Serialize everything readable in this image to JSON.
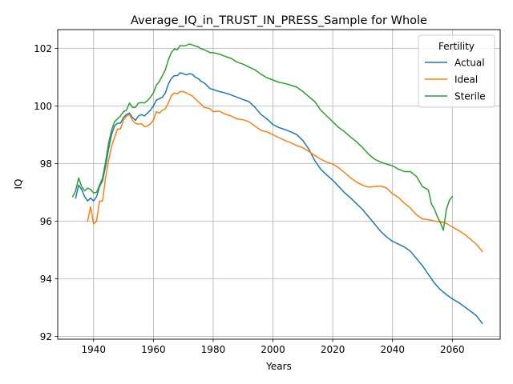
{
  "chart_data": {
    "type": "line",
    "title": "Average_IQ_in_TRUST_IN_PRESS_Sample for Whole",
    "xlabel": "Years",
    "ylabel": "IQ",
    "xlim": [
      1928,
      2076
    ],
    "ylim": [
      91.9,
      102.65
    ],
    "xticks": [
      1940,
      1960,
      1980,
      2000,
      2020,
      2040,
      2060
    ],
    "yticks": [
      92,
      94,
      96,
      98,
      100,
      102
    ],
    "grid": true,
    "legend": {
      "title": "Fertility",
      "placement": "top-right"
    },
    "series": [
      {
        "name": "Actual",
        "color": "#1f77b4",
        "points": [
          [
            1934,
            96.8
          ],
          [
            1935,
            97.25
          ],
          [
            1936,
            97.1
          ],
          [
            1937,
            96.85
          ],
          [
            1938,
            96.7
          ],
          [
            1939,
            96.8
          ],
          [
            1940,
            96.7
          ],
          [
            1941,
            96.85
          ],
          [
            1942,
            97.2
          ],
          [
            1943,
            97.4
          ],
          [
            1944,
            97.9
          ],
          [
            1945,
            98.5
          ],
          [
            1946,
            99.0
          ],
          [
            1947,
            99.3
          ],
          [
            1948,
            99.4
          ],
          [
            1949,
            99.4
          ],
          [
            1950,
            99.6
          ],
          [
            1951,
            99.7
          ],
          [
            1952,
            99.75
          ],
          [
            1953,
            99.6
          ],
          [
            1954,
            99.5
          ],
          [
            1955,
            99.65
          ],
          [
            1956,
            99.7
          ],
          [
            1957,
            99.65
          ],
          [
            1958,
            99.75
          ],
          [
            1959,
            99.85
          ],
          [
            1960,
            100.0
          ],
          [
            1961,
            100.2
          ],
          [
            1962,
            100.25
          ],
          [
            1963,
            100.3
          ],
          [
            1964,
            100.45
          ],
          [
            1965,
            100.75
          ],
          [
            1966,
            100.95
          ],
          [
            1967,
            101.05
          ],
          [
            1968,
            101.05
          ],
          [
            1969,
            101.15
          ],
          [
            1970,
            101.12
          ],
          [
            1971,
            101.08
          ],
          [
            1972,
            101.12
          ],
          [
            1973,
            101.1
          ],
          [
            1974,
            101.0
          ],
          [
            1975,
            100.95
          ],
          [
            1976,
            100.85
          ],
          [
            1977,
            100.8
          ],
          [
            1978,
            100.7
          ],
          [
            1979,
            100.6
          ],
          [
            1980,
            100.57
          ],
          [
            1982,
            100.5
          ],
          [
            1984,
            100.45
          ],
          [
            1986,
            100.38
          ],
          [
            1988,
            100.3
          ],
          [
            1990,
            100.22
          ],
          [
            1992,
            100.15
          ],
          [
            1994,
            99.95
          ],
          [
            1996,
            99.7
          ],
          [
            1998,
            99.55
          ],
          [
            2000,
            99.35
          ],
          [
            2002,
            99.25
          ],
          [
            2004,
            99.18
          ],
          [
            2006,
            99.1
          ],
          [
            2008,
            99.0
          ],
          [
            2010,
            98.8
          ],
          [
            2012,
            98.5
          ],
          [
            2014,
            98.1
          ],
          [
            2016,
            97.8
          ],
          [
            2018,
            97.6
          ],
          [
            2020,
            97.42
          ],
          [
            2022,
            97.2
          ],
          [
            2024,
            96.98
          ],
          [
            2026,
            96.8
          ],
          [
            2028,
            96.6
          ],
          [
            2030,
            96.4
          ],
          [
            2032,
            96.15
          ],
          [
            2034,
            95.9
          ],
          [
            2036,
            95.65
          ],
          [
            2038,
            95.45
          ],
          [
            2040,
            95.3
          ],
          [
            2042,
            95.2
          ],
          [
            2044,
            95.1
          ],
          [
            2046,
            94.95
          ],
          [
            2048,
            94.7
          ],
          [
            2050,
            94.45
          ],
          [
            2052,
            94.15
          ],
          [
            2054,
            93.85
          ],
          [
            2056,
            93.62
          ],
          [
            2058,
            93.45
          ],
          [
            2060,
            93.3
          ],
          [
            2062,
            93.18
          ],
          [
            2064,
            93.03
          ],
          [
            2066,
            92.88
          ],
          [
            2068,
            92.72
          ],
          [
            2070,
            92.45
          ]
        ]
      },
      {
        "name": "Ideal",
        "color": "#ff7f0e",
        "points": [
          [
            1938,
            96.0
          ],
          [
            1939,
            96.5
          ],
          [
            1940,
            95.9
          ],
          [
            1941,
            96.0
          ],
          [
            1942,
            96.7
          ],
          [
            1943,
            96.7
          ],
          [
            1944,
            97.5
          ],
          [
            1945,
            98.1
          ],
          [
            1946,
            98.6
          ],
          [
            1947,
            98.9
          ],
          [
            1948,
            99.2
          ],
          [
            1949,
            99.2
          ],
          [
            1950,
            99.5
          ],
          [
            1951,
            99.65
          ],
          [
            1952,
            99.7
          ],
          [
            1953,
            99.5
          ],
          [
            1954,
            99.4
          ],
          [
            1955,
            99.37
          ],
          [
            1956,
            99.38
          ],
          [
            1957,
            99.28
          ],
          [
            1958,
            99.3
          ],
          [
            1959,
            99.38
          ],
          [
            1960,
            99.5
          ],
          [
            1961,
            99.8
          ],
          [
            1962,
            99.75
          ],
          [
            1963,
            99.85
          ],
          [
            1964,
            99.9
          ],
          [
            1965,
            100.1
          ],
          [
            1966,
            100.35
          ],
          [
            1967,
            100.45
          ],
          [
            1968,
            100.42
          ],
          [
            1969,
            100.5
          ],
          [
            1970,
            100.5
          ],
          [
            1971,
            100.45
          ],
          [
            1972,
            100.4
          ],
          [
            1973,
            100.35
          ],
          [
            1974,
            100.25
          ],
          [
            1975,
            100.15
          ],
          [
            1976,
            100.05
          ],
          [
            1977,
            99.95
          ],
          [
            1978,
            99.93
          ],
          [
            1979,
            99.9
          ],
          [
            1980,
            99.8
          ],
          [
            1982,
            99.82
          ],
          [
            1984,
            99.72
          ],
          [
            1986,
            99.65
          ],
          [
            1988,
            99.55
          ],
          [
            1990,
            99.52
          ],
          [
            1992,
            99.45
          ],
          [
            1994,
            99.3
          ],
          [
            1996,
            99.15
          ],
          [
            1998,
            99.1
          ],
          [
            2000,
            99.0
          ],
          [
            2002,
            98.9
          ],
          [
            2004,
            98.8
          ],
          [
            2006,
            98.72
          ],
          [
            2008,
            98.62
          ],
          [
            2010,
            98.55
          ],
          [
            2012,
            98.42
          ],
          [
            2014,
            98.28
          ],
          [
            2016,
            98.15
          ],
          [
            2018,
            98.05
          ],
          [
            2020,
            97.98
          ],
          [
            2022,
            97.85
          ],
          [
            2024,
            97.68
          ],
          [
            2026,
            97.5
          ],
          [
            2028,
            97.35
          ],
          [
            2030,
            97.25
          ],
          [
            2032,
            97.18
          ],
          [
            2034,
            97.2
          ],
          [
            2036,
            97.22
          ],
          [
            2038,
            97.15
          ],
          [
            2040,
            96.95
          ],
          [
            2042,
            96.82
          ],
          [
            2044,
            96.62
          ],
          [
            2046,
            96.45
          ],
          [
            2048,
            96.22
          ],
          [
            2050,
            96.08
          ],
          [
            2052,
            96.05
          ],
          [
            2054,
            96.0
          ],
          [
            2056,
            95.98
          ],
          [
            2058,
            95.92
          ],
          [
            2060,
            95.8
          ],
          [
            2062,
            95.68
          ],
          [
            2064,
            95.55
          ],
          [
            2066,
            95.38
          ],
          [
            2068,
            95.2
          ],
          [
            2070,
            94.95
          ]
        ]
      },
      {
        "name": "Sterile",
        "color": "#2ca02c",
        "points": [
          [
            1933,
            96.85
          ],
          [
            1934,
            97.05
          ],
          [
            1935,
            97.5
          ],
          [
            1936,
            97.2
          ],
          [
            1937,
            97.05
          ],
          [
            1938,
            97.15
          ],
          [
            1939,
            97.1
          ],
          [
            1940,
            96.98
          ],
          [
            1941,
            97.0
          ],
          [
            1942,
            97.25
          ],
          [
            1943,
            97.5
          ],
          [
            1944,
            98.05
          ],
          [
            1945,
            98.7
          ],
          [
            1946,
            99.15
          ],
          [
            1947,
            99.45
          ],
          [
            1948,
            99.55
          ],
          [
            1949,
            99.65
          ],
          [
            1950,
            99.8
          ],
          [
            1951,
            99.85
          ],
          [
            1952,
            100.1
          ],
          [
            1953,
            99.95
          ],
          [
            1954,
            99.95
          ],
          [
            1955,
            100.1
          ],
          [
            1956,
            100.12
          ],
          [
            1957,
            100.1
          ],
          [
            1958,
            100.18
          ],
          [
            1959,
            100.3
          ],
          [
            1960,
            100.45
          ],
          [
            1961,
            100.72
          ],
          [
            1962,
            100.85
          ],
          [
            1963,
            101.05
          ],
          [
            1964,
            101.25
          ],
          [
            1965,
            101.6
          ],
          [
            1966,
            101.85
          ],
          [
            1967,
            101.98
          ],
          [
            1968,
            101.95
          ],
          [
            1969,
            102.1
          ],
          [
            1970,
            102.08
          ],
          [
            1971,
            102.1
          ],
          [
            1972,
            102.15
          ],
          [
            1973,
            102.12
          ],
          [
            1974,
            102.08
          ],
          [
            1975,
            102.05
          ],
          [
            1976,
            101.98
          ],
          [
            1977,
            101.95
          ],
          [
            1978,
            101.9
          ],
          [
            1979,
            101.85
          ],
          [
            1980,
            101.85
          ],
          [
            1982,
            101.8
          ],
          [
            1984,
            101.72
          ],
          [
            1986,
            101.65
          ],
          [
            1988,
            101.52
          ],
          [
            1990,
            101.45
          ],
          [
            1992,
            101.35
          ],
          [
            1994,
            101.25
          ],
          [
            1996,
            101.1
          ],
          [
            1998,
            100.98
          ],
          [
            2000,
            100.9
          ],
          [
            2002,
            100.82
          ],
          [
            2004,
            100.78
          ],
          [
            2006,
            100.72
          ],
          [
            2008,
            100.65
          ],
          [
            2010,
            100.5
          ],
          [
            2012,
            100.32
          ],
          [
            2014,
            100.15
          ],
          [
            2016,
            99.85
          ],
          [
            2018,
            99.65
          ],
          [
            2020,
            99.45
          ],
          [
            2022,
            99.25
          ],
          [
            2024,
            99.1
          ],
          [
            2026,
            98.92
          ],
          [
            2028,
            98.75
          ],
          [
            2030,
            98.55
          ],
          [
            2032,
            98.32
          ],
          [
            2034,
            98.15
          ],
          [
            2036,
            98.05
          ],
          [
            2038,
            97.98
          ],
          [
            2040,
            97.92
          ],
          [
            2042,
            97.8
          ],
          [
            2044,
            97.72
          ],
          [
            2046,
            97.72
          ],
          [
            2048,
            97.55
          ],
          [
            2050,
            97.2
          ],
          [
            2052,
            97.08
          ],
          [
            2053,
            96.6
          ],
          [
            2054,
            96.42
          ],
          [
            2055,
            96.15
          ],
          [
            2056,
            95.95
          ],
          [
            2057,
            95.68
          ],
          [
            2058,
            96.4
          ],
          [
            2059,
            96.72
          ],
          [
            2060,
            96.85
          ]
        ]
      }
    ]
  }
}
